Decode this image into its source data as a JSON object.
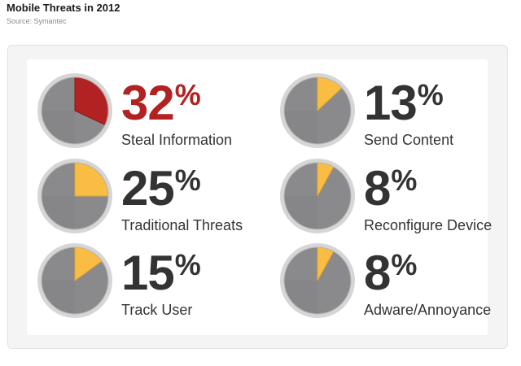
{
  "header": {
    "title": "Mobile Threats in 2012",
    "source": "Source: Symantec"
  },
  "colors": {
    "accent_red": "#b22222",
    "accent_yellow": "#f8bd42",
    "pie_gray": "#8a8a8c",
    "pie_border": "#d6d6d6",
    "text": "#333333"
  },
  "chart_data": {
    "type": "pie",
    "title": "Mobile Threats in 2012",
    "subtitle": "Source: Symantec",
    "unit": "%",
    "categories": [
      "Steal Information",
      "Traditional Threats",
      "Track User",
      "Send Content",
      "Reconfigure Device",
      "Adware/Annoyance"
    ],
    "values": [
      32,
      25,
      15,
      13,
      8,
      8
    ],
    "items": [
      {
        "value": 32,
        "label": "Steal Information",
        "highlight": "red"
      },
      {
        "value": 25,
        "label": "Traditional Threats",
        "highlight": "yellow"
      },
      {
        "value": 15,
        "label": "Track User",
        "highlight": "yellow"
      },
      {
        "value": 13,
        "label": "Send Content",
        "highlight": "yellow"
      },
      {
        "value": 8,
        "label": "Reconfigure Device",
        "highlight": "yellow"
      },
      {
        "value": 8,
        "label": "Adware/Annoyance",
        "highlight": "yellow"
      }
    ]
  }
}
